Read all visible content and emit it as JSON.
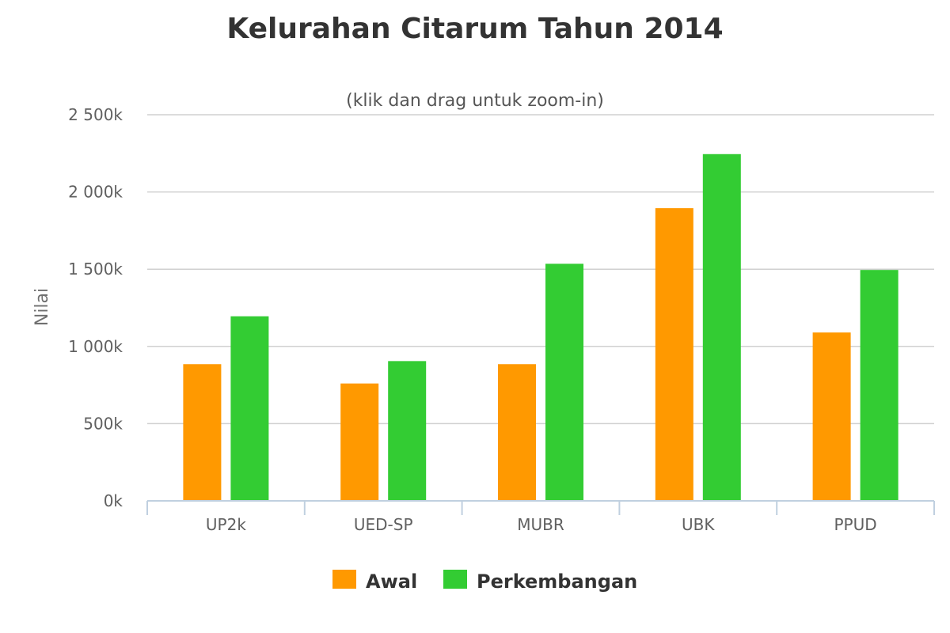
{
  "chart_data": {
    "type": "bar",
    "title": "Kelurahan Citarum Tahun 2014",
    "subtitle": "(klik dan drag untuk zoom-in)",
    "ylabel": "Nilai",
    "xlabel": "",
    "categories": [
      "UP2k",
      "UED-SP",
      "MUBR",
      "UBK",
      "PPUD"
    ],
    "series": [
      {
        "name": "Awal",
        "color": "#ff9900",
        "values": [
          885000,
          760000,
          885000,
          1895000,
          1090000
        ]
      },
      {
        "name": "Perkembangan",
        "color": "#33cc33",
        "values": [
          1195000,
          905000,
          1535000,
          2245000,
          1495000
        ]
      }
    ],
    "ylim": [
      0,
      2500000
    ],
    "yticks": [
      {
        "value": 0,
        "label": "0k"
      },
      {
        "value": 500000,
        "label": "500k"
      },
      {
        "value": 1000000,
        "label": "1 000k"
      },
      {
        "value": 1500000,
        "label": "1 500k"
      },
      {
        "value": 2000000,
        "label": "2 000k"
      },
      {
        "value": 2500000,
        "label": "2 500k"
      }
    ],
    "grid": true,
    "legend": "bottom-center"
  }
}
